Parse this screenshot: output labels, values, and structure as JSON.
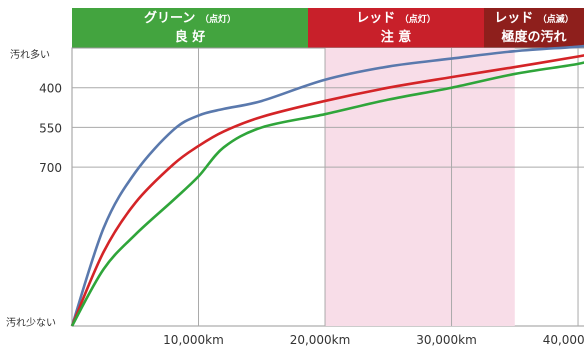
{
  "bands": [
    {
      "line1": "グリーン",
      "tag": "（点灯）",
      "line2": "良 好",
      "color": "#43a43f"
    },
    {
      "line1": "レッド",
      "tag": "（点灯）",
      "line2": "注 意",
      "color": "#c8202a"
    },
    {
      "line1": "レッド",
      "tag": "（点滅）",
      "line2": "極度の汚れ",
      "color": "#8e1f1c"
    }
  ],
  "chart_data": {
    "type": "line",
    "xlabel": "",
    "ylabel": "",
    "x_ticks": [
      "10,000km",
      "20,000km",
      "30,000km",
      "40,000km"
    ],
    "x_tick_values": [
      10000,
      20000,
      30000,
      40000
    ],
    "xlim": [
      0,
      41500
    ],
    "y_top_label": "汚れ多い",
    "y_bottom_label": "汚れ少ない",
    "y_ticks": [
      "400",
      "550",
      "700"
    ],
    "y_tick_values": [
      400,
      550,
      700
    ],
    "ylim": [
      1300,
      250
    ],
    "pink_region": [
      20000,
      35000
    ],
    "grid": true,
    "series": [
      {
        "color": "#5a79ad",
        "x": [
          0,
          2500,
          5000,
          8000,
          10000,
          12000,
          15000,
          20000,
          25000,
          30000,
          35000,
          40000,
          41500
        ],
        "y": [
          1300,
          930,
          720,
          560,
          505,
          480,
          450,
          370,
          320,
          290,
          262,
          245,
          235
        ]
      },
      {
        "color": "#d42427",
        "x": [
          0,
          2500,
          5000,
          8000,
          10000,
          12000,
          15000,
          20000,
          25000,
          30000,
          35000,
          40000,
          41500
        ],
        "y": [
          1300,
          1020,
          835,
          690,
          620,
          565,
          510,
          450,
          400,
          360,
          322,
          282,
          270
        ]
      },
      {
        "color": "#2fa53a",
        "x": [
          0,
          2500,
          5000,
          8000,
          10000,
          12000,
          15000,
          20000,
          25000,
          30000,
          35000,
          40000,
          41500
        ],
        "y": [
          1300,
          1085,
          955,
          825,
          735,
          625,
          550,
          500,
          445,
          400,
          348,
          310,
          288
        ]
      }
    ]
  }
}
